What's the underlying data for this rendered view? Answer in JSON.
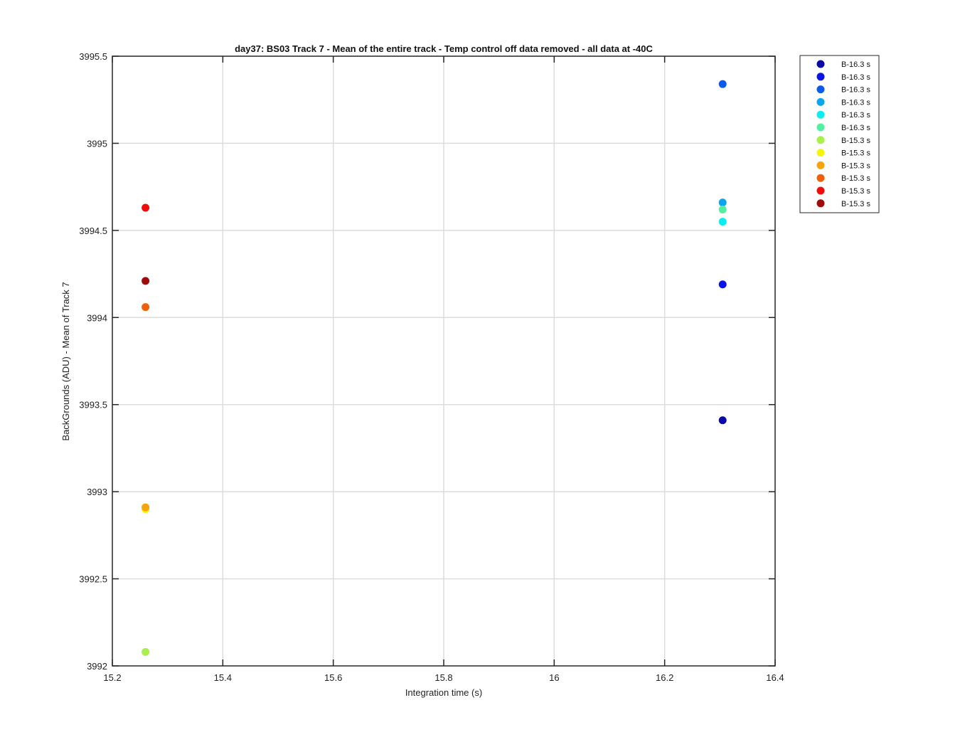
{
  "chart_data": {
    "type": "scatter",
    "title": "day37: BS03  Track 7 - Mean of the entire track - Temp control off data removed - all data at -40C",
    "xlabel": "Integration time (s)",
    "ylabel": "BackGrounds (ADU) - Mean of Track 7",
    "xlim": [
      15.2,
      16.4
    ],
    "ylim": [
      3992,
      3995.5
    ],
    "xticks": [
      15.2,
      15.4,
      15.6,
      15.8,
      16,
      16.2,
      16.4
    ],
    "xtick_labels": [
      "15.2",
      "15.4",
      "15.6",
      "15.8",
      "16",
      "16.2",
      "16.4"
    ],
    "yticks": [
      3992,
      3992.5,
      3993,
      3993.5,
      3994,
      3994.5,
      3995,
      3995.5
    ],
    "ytick_labels": [
      "3992",
      "3992.5",
      "3993",
      "3993.5",
      "3994",
      "3994.5",
      "3995",
      "3995.5"
    ],
    "grid": true,
    "legend_position": "outside-top-right",
    "series": [
      {
        "name": "B-16.3 s",
        "color": "#0a0aa8",
        "x": 16.305,
        "y": 3993.41
      },
      {
        "name": "B-16.3 s",
        "color": "#0a14e6",
        "x": 16.305,
        "y": 3994.19
      },
      {
        "name": "B-16.3 s",
        "color": "#0a5af0",
        "x": 16.305,
        "y": 3995.34
      },
      {
        "name": "B-16.3 s",
        "color": "#08a6ee",
        "x": 16.305,
        "y": 3994.66
      },
      {
        "name": "B-16.3 s",
        "color": "#0aeef2",
        "x": 16.305,
        "y": 3994.55
      },
      {
        "name": "B-16.3 s",
        "color": "#50f0a0",
        "x": 16.305,
        "y": 3994.62
      },
      {
        "name": "B-15.3 s",
        "color": "#a8f04a",
        "x": 15.26,
        "y": 3992.08
      },
      {
        "name": "B-15.3 s",
        "color": "#f5f50a",
        "x": 15.26,
        "y": 3992.9
      },
      {
        "name": "B-15.3 s",
        "color": "#f5a50a",
        "x": 15.26,
        "y": 3992.91
      },
      {
        "name": "B-15.3 s",
        "color": "#f0600a",
        "x": 15.26,
        "y": 3994.06
      },
      {
        "name": "B-15.3 s",
        "color": "#f50a0a",
        "x": 15.26,
        "y": 3994.63
      },
      {
        "name": "B-15.3 s",
        "color": "#a00a0a",
        "x": 15.26,
        "y": 3994.21
      }
    ]
  }
}
